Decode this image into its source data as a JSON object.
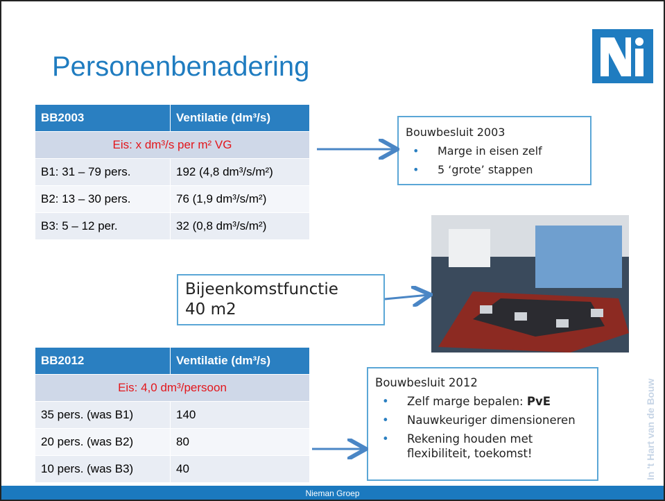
{
  "slide": {
    "title": "Personenbenadering",
    "table_2003": {
      "header": [
        "BB2003",
        "Ventilatie (dm³/s)"
      ],
      "requirement": "Eis: x dm³/s per m² VG",
      "rows": [
        [
          "B1: 31 – 79 pers.",
          "192 (4,8 dm³/s/m²)"
        ],
        [
          "B2: 13 – 30 pers.",
          "76 (1,9 dm³/s/m²)"
        ],
        [
          "B3: 5 – 12 per.",
          "32 (0,8 dm³/s/m²)"
        ]
      ]
    },
    "box_2003": {
      "title": "Bouwbesluit 2003",
      "bullets": [
        "Marge in eisen zelf",
        "5 ‘grote’ stappen"
      ]
    },
    "function_box": {
      "lines": [
        "Bijeenkomstfunctie",
        "40 m2"
      ]
    },
    "table_2012": {
      "header": [
        "BB2012",
        "Ventilatie (dm³/s)"
      ],
      "requirement": "Eis: 4,0 dm³/persoon",
      "rows": [
        [
          "35 pers. (was B1)",
          "140"
        ],
        [
          "20 pers. (was B2)",
          "80"
        ],
        [
          "10 pers. (was B3)",
          "40"
        ]
      ]
    },
    "box_2012": {
      "title": "Bouwbesluit 2012",
      "bullet_1": {
        "text": "Zelf marge bepalen: ",
        "bold": "PvE"
      },
      "bullet_2": "Nauwkeuriger dimensioneren",
      "bullet_3": [
        "Rekening houden met",
        "flexibiliteit, toekomst!"
      ]
    },
    "side_text": "In 't Hart van de Bouw",
    "footer": "Nieman Groep"
  }
}
